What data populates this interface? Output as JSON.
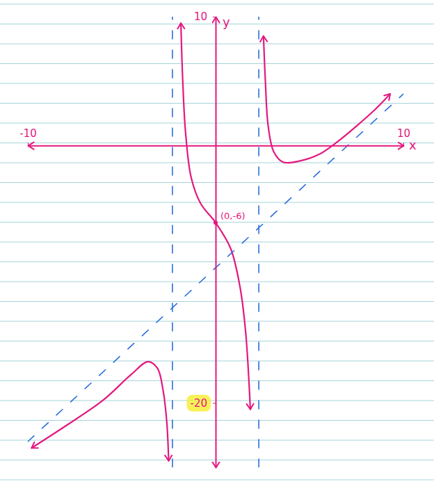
{
  "chart_data": {
    "type": "line",
    "xlabel": "x",
    "ylabel": "y",
    "xlim": [
      -10,
      10
    ],
    "ylim": [
      -25,
      10
    ],
    "xticks": [
      -10,
      10
    ],
    "yticks": [
      -20,
      10
    ],
    "grid": false,
    "series": [
      {
        "color": "#e3197f",
        "line_style": "solid",
        "marker": "arrow",
        "x": [
          -9.8,
          -8,
          -6,
          -4.5,
          -3.6,
          -3.1,
          -2.8,
          -2.6,
          -2.5
        ],
        "values": [
          -23.5,
          -21.8,
          -19.8,
          -17.8,
          -16.8,
          -17.3,
          -19,
          -21.5,
          -24.5
        ]
      },
      {
        "color": "#e3197f",
        "line_style": "solid",
        "marker": "arrow",
        "x": [
          -1.85,
          -1.75,
          -1.6,
          -1.3,
          -0.8,
          0,
          0.8,
          1.3,
          1.6,
          1.85
        ],
        "values": [
          9.5,
          5,
          1,
          -2.5,
          -4.5,
          -6,
          -8,
          -11,
          -14.5,
          -20.5
        ]
      },
      {
        "color": "#e3197f",
        "line_style": "solid",
        "marker": "arrow",
        "x": [
          2.55,
          2.65,
          2.8,
          3.1,
          3.6,
          4.5,
          5.5,
          6.5,
          7.5,
          8.5,
          9.3
        ],
        "values": [
          8.5,
          5,
          1.5,
          -0.5,
          -1.3,
          -1.2,
          -0.7,
          0.3,
          1.5,
          2.8,
          4
        ]
      },
      {
        "color": "#2a6fdb",
        "line_style": "dashed",
        "x": [
          -2.3,
          -2.3
        ],
        "values": [
          -25,
          10
        ]
      },
      {
        "color": "#2a6fdb",
        "line_style": "dashed",
        "x": [
          2.3,
          2.3
        ],
        "values": [
          -25,
          10
        ]
      },
      {
        "color": "#2a6fdb",
        "line_style": "dashed",
        "x": [
          -10,
          10
        ],
        "values": [
          -23,
          4
        ]
      }
    ],
    "annotations": [
      {
        "text": "(0,-6)",
        "x": 0,
        "y": -6
      }
    ]
  }
}
